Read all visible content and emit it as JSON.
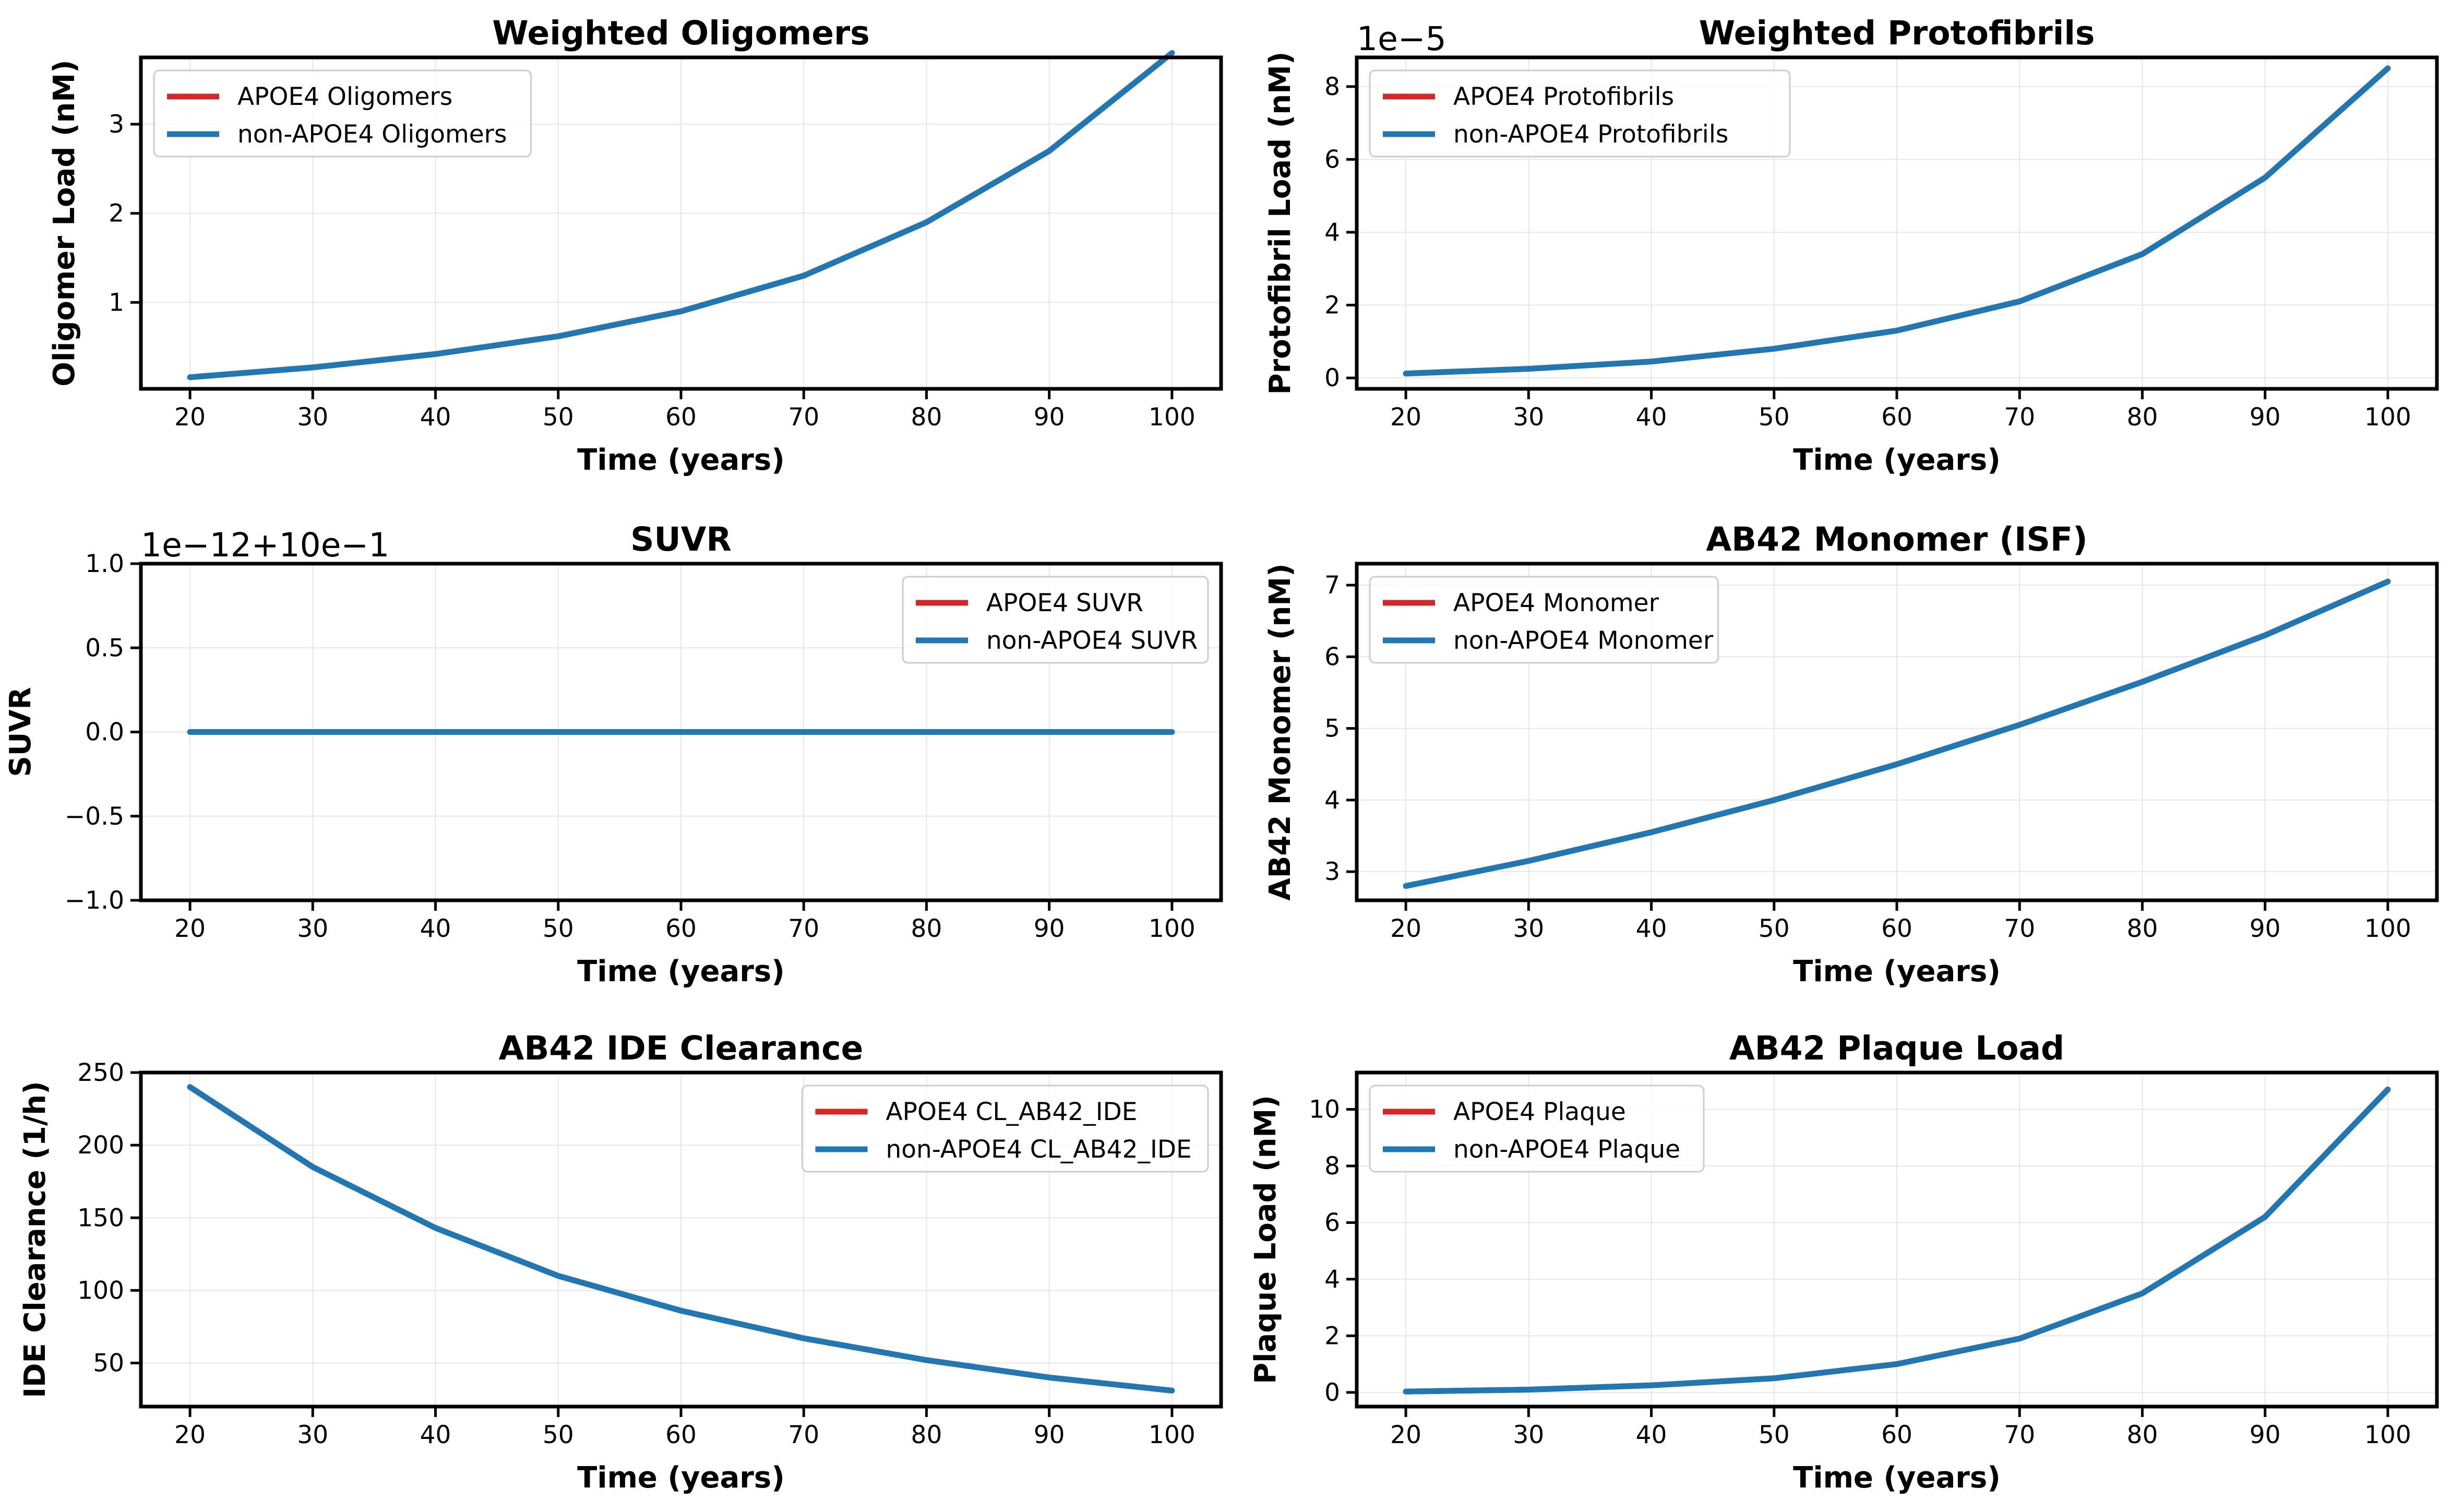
{
  "colors": {
    "apoe4": "#d62728",
    "non_apoe4": "#1f77b4",
    "grid": "#e6e6e6",
    "legend_border": "#cccccc"
  },
  "chart_data": [
    {
      "type": "line",
      "title": "Weighted Oligomers",
      "xlabel": "Time (years)",
      "ylabel": "Oligomer Load (nM)",
      "xlim": [
        16,
        104
      ],
      "ylim": [
        0.03,
        3.75
      ],
      "xticks": [
        20,
        30,
        40,
        50,
        60,
        70,
        80,
        90,
        100
      ],
      "yticks": [
        1,
        2,
        3
      ],
      "ytick_labels": [
        "1",
        "2",
        "3"
      ],
      "offset_text": "",
      "legend": "upper left",
      "x": [
        20,
        30,
        40,
        50,
        60,
        70,
        80,
        90,
        100
      ],
      "series": [
        {
          "name": "APOE4 Oligomers",
          "values": [
            0.16,
            0.27,
            0.42,
            0.62,
            0.9,
            1.3,
            1.9,
            2.7,
            3.8
          ]
        },
        {
          "name": "non-APOE4 Oligomers",
          "values": [
            0.16,
            0.27,
            0.42,
            0.62,
            0.9,
            1.3,
            1.9,
            2.7,
            3.8
          ]
        }
      ]
    },
    {
      "type": "line",
      "title": "Weighted Protofibrils",
      "xlabel": "Time (years)",
      "ylabel": "Protofibril Load (nM)",
      "xlim": [
        16,
        104
      ],
      "ylim": [
        -0.3,
        8.8
      ],
      "xticks": [
        20,
        30,
        40,
        50,
        60,
        70,
        80,
        90,
        100
      ],
      "yticks": [
        0,
        2,
        4,
        6,
        8
      ],
      "ytick_labels": [
        "0",
        "2",
        "4",
        "6",
        "8"
      ],
      "offset_text": "1e−5",
      "legend": "upper left",
      "x": [
        20,
        30,
        40,
        50,
        60,
        70,
        80,
        90,
        100
      ],
      "series": [
        {
          "name": "APOE4 Protofibrils",
          "values": [
            0.12,
            0.25,
            0.45,
            0.8,
            1.3,
            2.1,
            3.4,
            5.5,
            8.5
          ]
        },
        {
          "name": "non-APOE4 Protofibrils",
          "values": [
            0.12,
            0.25,
            0.45,
            0.8,
            1.3,
            2.1,
            3.4,
            5.5,
            8.5
          ]
        }
      ]
    },
    {
      "type": "line",
      "title": "SUVR",
      "xlabel": "Time (years)",
      "ylabel": "SUVR",
      "xlim": [
        16,
        104
      ],
      "ylim": [
        -1.0,
        1.0
      ],
      "xticks": [
        20,
        30,
        40,
        50,
        60,
        70,
        80,
        90,
        100
      ],
      "yticks": [
        -1.0,
        -0.5,
        0.0,
        0.5,
        1.0
      ],
      "ytick_labels": [
        "−1.0",
        "−0.5",
        "0.0",
        "0.5",
        "1.0"
      ],
      "offset_text": "1e−12+10e−1",
      "legend": "upper right",
      "x": [
        20,
        30,
        40,
        50,
        60,
        70,
        80,
        90,
        100
      ],
      "series": [
        {
          "name": "APOE4 SUVR",
          "values": [
            0,
            0,
            0,
            0,
            0,
            0,
            0,
            0,
            0
          ]
        },
        {
          "name": "non-APOE4 SUVR",
          "values": [
            0,
            0,
            0,
            0,
            0,
            0,
            0,
            0,
            0
          ]
        }
      ]
    },
    {
      "type": "line",
      "title": "AB42 Monomer (ISF)",
      "xlabel": "Time (years)",
      "ylabel": "AB42 Monomer (nM)",
      "xlim": [
        16,
        104
      ],
      "ylim": [
        2.6,
        7.3
      ],
      "xticks": [
        20,
        30,
        40,
        50,
        60,
        70,
        80,
        90,
        100
      ],
      "yticks": [
        3,
        4,
        5,
        6,
        7
      ],
      "ytick_labels": [
        "3",
        "4",
        "5",
        "6",
        "7"
      ],
      "offset_text": "",
      "legend": "upper left",
      "x": [
        20,
        30,
        40,
        50,
        60,
        70,
        80,
        90,
        100
      ],
      "series": [
        {
          "name": "APOE4 Monomer",
          "values": [
            2.8,
            3.15,
            3.55,
            4.0,
            4.5,
            5.05,
            5.65,
            6.3,
            7.05
          ]
        },
        {
          "name": "non-APOE4 Monomer",
          "values": [
            2.8,
            3.15,
            3.55,
            4.0,
            4.5,
            5.05,
            5.65,
            6.3,
            7.05
          ]
        }
      ]
    },
    {
      "type": "line",
      "title": "AB42 IDE Clearance",
      "xlabel": "Time (years)",
      "ylabel": "IDE Clearance (1/h)",
      "xlim": [
        16,
        104
      ],
      "ylim": [
        20,
        250
      ],
      "xticks": [
        20,
        30,
        40,
        50,
        60,
        70,
        80,
        90,
        100
      ],
      "yticks": [
        50,
        100,
        150,
        200,
        250
      ],
      "ytick_labels": [
        "50",
        "100",
        "150",
        "200",
        "250"
      ],
      "offset_text": "",
      "legend": "upper right",
      "x": [
        20,
        30,
        40,
        50,
        60,
        70,
        80,
        90,
        100
      ],
      "series": [
        {
          "name": "APOE4 CL_AB42_IDE",
          "values": [
            240,
            185,
            143,
            110,
            86,
            67,
            52,
            40,
            31
          ]
        },
        {
          "name": "non-APOE4 CL_AB42_IDE",
          "values": [
            240,
            185,
            143,
            110,
            86,
            67,
            52,
            40,
            31
          ]
        }
      ]
    },
    {
      "type": "line",
      "title": "AB42 Plaque Load",
      "xlabel": "Time (years)",
      "ylabel": "Plaque Load (nM)",
      "xlim": [
        16,
        104
      ],
      "ylim": [
        -0.5,
        11.3
      ],
      "xticks": [
        20,
        30,
        40,
        50,
        60,
        70,
        80,
        90,
        100
      ],
      "yticks": [
        0,
        2,
        4,
        6,
        8,
        10
      ],
      "ytick_labels": [
        "0",
        "2",
        "4",
        "6",
        "8",
        "10"
      ],
      "offset_text": "",
      "legend": "upper left",
      "x": [
        20,
        30,
        40,
        50,
        60,
        70,
        80,
        90,
        100
      ],
      "series": [
        {
          "name": "APOE4 Plaque",
          "values": [
            0.03,
            0.1,
            0.25,
            0.5,
            1.0,
            1.9,
            3.5,
            6.2,
            10.7
          ]
        },
        {
          "name": "non-APOE4 Plaque",
          "values": [
            0.03,
            0.1,
            0.25,
            0.5,
            1.0,
            1.9,
            3.5,
            6.2,
            10.7
          ]
        }
      ]
    }
  ]
}
